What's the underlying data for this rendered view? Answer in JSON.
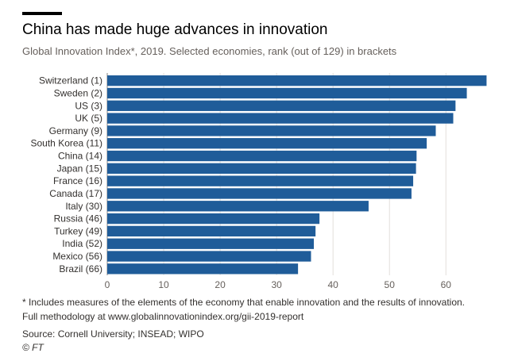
{
  "header": {
    "title": "China has made huge advances in innovation",
    "subtitle": "Global Innovation Index*, 2019. Selected economies, rank (out of 129) in brackets"
  },
  "chart_data": {
    "type": "bar",
    "orientation": "horizontal",
    "categories": [
      "Switzerland (1)",
      "Sweden (2)",
      "US (3)",
      "UK (5)",
      "Germany (9)",
      "South Korea (11)",
      "China (14)",
      "Japan (15)",
      "France (16)",
      "Canada (17)",
      "Italy (30)",
      "Russia (46)",
      "Turkey (49)",
      "India (52)",
      "Mexico (56)",
      "Brazil (66)"
    ],
    "values": [
      67.2,
      63.7,
      61.7,
      61.3,
      58.2,
      56.6,
      54.8,
      54.7,
      54.2,
      53.9,
      46.3,
      37.6,
      36.9,
      36.6,
      36.1,
      33.8
    ],
    "xlim": [
      0,
      67
    ],
    "xticks": [
      "0",
      "10",
      "20",
      "30",
      "40",
      "50",
      "60"
    ],
    "bar_color": "#1f5c99",
    "grid": true
  },
  "footer": {
    "note1": "* Includes measures of the elements of the economy that enable innovation and the results of innovation.",
    "note2": "Full methodology at www.globalinnovationindex.org/gii-2019-report",
    "source": "Source: Cornell University; INSEAD; WIPO",
    "copyright": "© FT"
  }
}
